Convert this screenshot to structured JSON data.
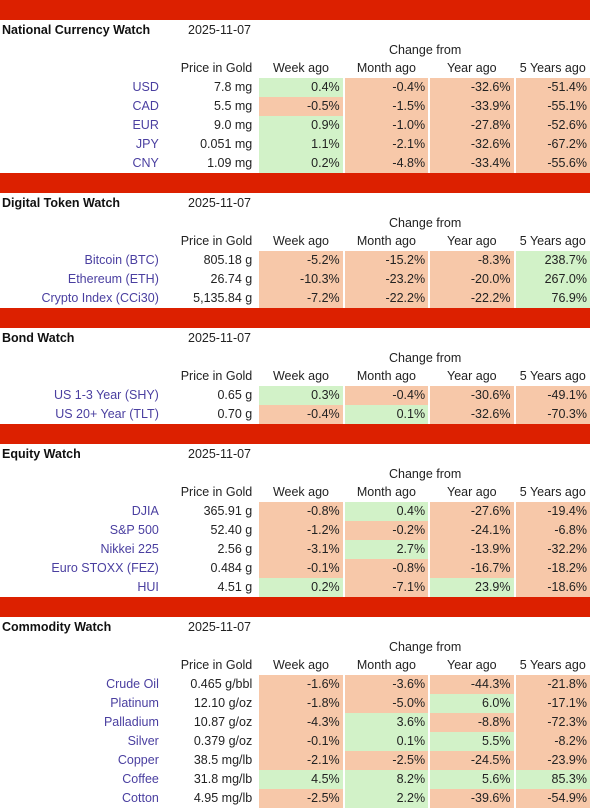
{
  "colors": {
    "header_bar": "#dc2000",
    "positive_cell": "#d2f2c8",
    "negative_cell": "#f7c8a9",
    "label_text": "#4a3fa0"
  },
  "columns": {
    "change_from": "Change from",
    "price": "Price in Gold",
    "week": "Week ago",
    "month": "Month ago",
    "year": "Year ago",
    "five_years": "5 Years ago"
  },
  "sections": [
    {
      "title": "National Currency Watch",
      "date": "2025-11-07",
      "rows": [
        {
          "label": "USD",
          "price": "7.8 mg",
          "week": "0.4%",
          "month": "-0.4%",
          "year": "-32.6%",
          "five": "-51.4%"
        },
        {
          "label": "CAD",
          "price": "5.5 mg",
          "week": "-0.5%",
          "month": "-1.5%",
          "year": "-33.9%",
          "five": "-55.1%"
        },
        {
          "label": "EUR",
          "price": "9.0 mg",
          "week": "0.9%",
          "month": "-1.0%",
          "year": "-27.8%",
          "five": "-52.6%"
        },
        {
          "label": "JPY",
          "price": "0.051 mg",
          "week": "1.1%",
          "month": "-2.1%",
          "year": "-32.6%",
          "five": "-67.2%"
        },
        {
          "label": "CNY",
          "price": "1.09 mg",
          "week": "0.2%",
          "month": "-4.8%",
          "year": "-33.4%",
          "five": "-55.6%"
        }
      ]
    },
    {
      "title": "Digital Token Watch",
      "date": "2025-11-07",
      "rows": [
        {
          "label": "Bitcoin (BTC)",
          "price": "805.18 g",
          "week": "-5.2%",
          "month": "-15.2%",
          "year": "-8.3%",
          "five": "238.7%"
        },
        {
          "label": "Ethereum (ETH)",
          "price": "26.74 g",
          "week": "-10.3%",
          "month": "-23.2%",
          "year": "-20.0%",
          "five": "267.0%"
        },
        {
          "label": "Crypto Index (CCi30)",
          "price": "5,135.84 g",
          "week": "-7.2%",
          "month": "-22.2%",
          "year": "-22.2%",
          "five": "76.9%"
        }
      ]
    },
    {
      "title": "Bond Watch",
      "date": "2025-11-07",
      "rows": [
        {
          "label": "US 1-3 Year (SHY)",
          "price": "0.65 g",
          "week": "0.3%",
          "month": "-0.4%",
          "year": "-30.6%",
          "five": "-49.1%"
        },
        {
          "label": "US 20+ Year (TLT)",
          "price": "0.70 g",
          "week": "-0.4%",
          "month": "0.1%",
          "year": "-32.6%",
          "five": "-70.3%"
        }
      ]
    },
    {
      "title": "Equity Watch",
      "date": "2025-11-07",
      "rows": [
        {
          "label": "DJIA",
          "price": "365.91 g",
          "week": "-0.8%",
          "month": "0.4%",
          "year": "-27.6%",
          "five": "-19.4%"
        },
        {
          "label": "S&P 500",
          "price": "52.40 g",
          "week": "-1.2%",
          "month": "-0.2%",
          "year": "-24.1%",
          "five": "-6.8%"
        },
        {
          "label": "Nikkei 225",
          "price": "2.56 g",
          "week": "-3.1%",
          "month": "2.7%",
          "year": "-13.9%",
          "five": "-32.2%"
        },
        {
          "label": "Euro STOXX (FEZ)",
          "price": "0.484 g",
          "week": "-0.1%",
          "month": "-0.8%",
          "year": "-16.7%",
          "five": "-18.2%"
        },
        {
          "label": "HUI",
          "price": "4.51 g",
          "week": "0.2%",
          "month": "-7.1%",
          "year": "23.9%",
          "five": "-18.6%"
        }
      ]
    },
    {
      "title": "Commodity Watch",
      "date": "2025-11-07",
      "rows": [
        {
          "label": "Crude Oil",
          "price": "0.465 g/bbl",
          "week": "-1.6%",
          "month": "-3.6%",
          "year": "-44.3%",
          "five": "-21.8%"
        },
        {
          "label": "Platinum",
          "price": "12.10 g/oz",
          "week": "-1.8%",
          "month": "-5.0%",
          "year": "6.0%",
          "five": "-17.1%"
        },
        {
          "label": "Palladium",
          "price": "10.87 g/oz",
          "week": "-4.3%",
          "month": "3.6%",
          "year": "-8.8%",
          "five": "-72.3%"
        },
        {
          "label": "Silver",
          "price": "0.379 g/oz",
          "week": "-0.1%",
          "month": "0.1%",
          "year": "5.5%",
          "five": "-8.2%"
        },
        {
          "label": "Copper",
          "price": "38.5 mg/lb",
          "week": "-2.1%",
          "month": "-2.5%",
          "year": "-24.5%",
          "five": "-23.9%"
        },
        {
          "label": "Coffee",
          "price": "31.8 mg/lb",
          "week": "4.5%",
          "month": "8.2%",
          "year": "5.6%",
          "five": "85.3%"
        },
        {
          "label": "Cotton",
          "price": "4.95 mg/lb",
          "week": "-2.5%",
          "month": "2.2%",
          "year": "-39.6%",
          "five": "-54.9%"
        }
      ]
    }
  ]
}
